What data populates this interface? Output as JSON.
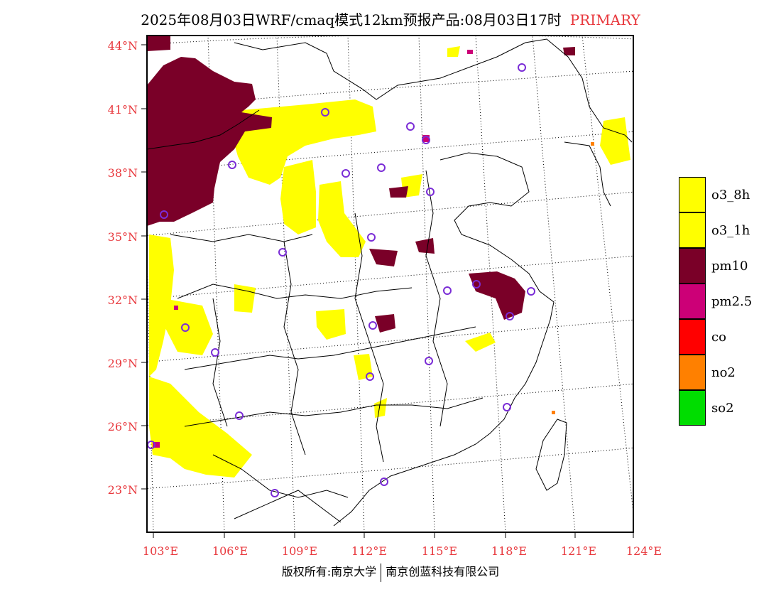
{
  "title": {
    "main": "2025年08月03日WRF/cmaq模式12km预报产品:08月03日17时",
    "tag": "PRIMARY"
  },
  "map": {
    "lat_labels": [
      "44°N",
      "41°N",
      "38°N",
      "35°N",
      "32°N",
      "29°N",
      "26°N",
      "23°N"
    ],
    "lon_labels": [
      "103°E",
      "106°E",
      "109°E",
      "112°E",
      "115°E",
      "118°E",
      "121°E",
      "124°E"
    ],
    "pollutant_colors": {
      "o3_8h": "#ffff00",
      "o3_1h": "#ffff00",
      "pm10": "#7a0028",
      "pm2.5": "#cc0077",
      "co": "#ff0000",
      "no2": "#ff8000",
      "so2": "#00dd00"
    },
    "station_marker_color": "#7a2cd6"
  },
  "legend": {
    "items": [
      {
        "label": "o3_8h",
        "color": "#ffff00"
      },
      {
        "label": "o3_1h",
        "color": "#ffff00"
      },
      {
        "label": "pm10",
        "color": "#7a0028"
      },
      {
        "label": "pm2.5",
        "color": "#cc0077"
      },
      {
        "label": "co",
        "color": "#ff0000"
      },
      {
        "label": "no2",
        "color": "#ff8000"
      },
      {
        "label": "so2",
        "color": "#00dd00"
      }
    ]
  },
  "footer": {
    "left": "版权所有:南京大学",
    "right": "南京创蓝科技有限公司"
  }
}
